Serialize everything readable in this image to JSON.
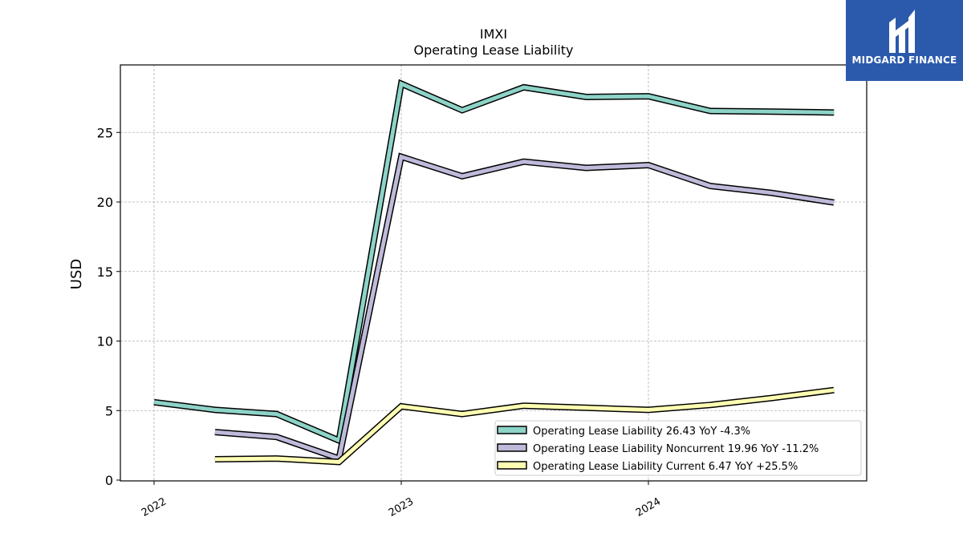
{
  "brand": {
    "name": "MIDGARD FINANCE",
    "logo_icon": "midgard-logo-icon",
    "background_color": "#2b5aac"
  },
  "chart_data": {
    "type": "line",
    "title": "IMXI",
    "subtitle": "Operating Lease Liability",
    "ylabel": "USD",
    "xlabel": "",
    "ylim": [
      0,
      30
    ],
    "y_ticks": [
      0,
      5,
      10,
      15,
      20,
      25
    ],
    "x_ticks": [
      "2022",
      "2023",
      "2024"
    ],
    "grid": true,
    "legend_position": "lower-right",
    "series": [
      {
        "name": "Operating Lease Liability",
        "legend_label": "Operating Lease Liability  26.43 YoY -4.3%",
        "color": "#8dd3c7",
        "points": [
          [
            "2022-01-01",
            5.6
          ],
          [
            "2022-04-01",
            5.05
          ],
          [
            "2022-07-01",
            4.75
          ],
          [
            "2022-10-01",
            2.85
          ],
          [
            "2023-01-01",
            28.5
          ],
          [
            "2023-04-01",
            26.6
          ],
          [
            "2023-07-01",
            28.25
          ],
          [
            "2023-10-01",
            27.55
          ],
          [
            "2024-01-01",
            27.6
          ],
          [
            "2024-04-01",
            26.55
          ],
          [
            "2024-07-01",
            26.5
          ],
          [
            "2024-10-01",
            26.43
          ]
        ]
      },
      {
        "name": "Operating Lease Liability Noncurrent",
        "legend_label": "Operating Lease Liability Noncurrent  19.96 YoY -11.2%",
        "color": "#bebada",
        "points": [
          [
            "2022-04-01",
            3.45
          ],
          [
            "2022-07-01",
            3.1
          ],
          [
            "2022-10-01",
            1.55
          ],
          [
            "2023-01-01",
            23.25
          ],
          [
            "2023-04-01",
            21.85
          ],
          [
            "2023-07-01",
            22.9
          ],
          [
            "2023-10-01",
            22.45
          ],
          [
            "2024-01-01",
            22.65
          ],
          [
            "2024-04-01",
            21.15
          ],
          [
            "2024-07-01",
            20.65
          ],
          [
            "2024-10-01",
            19.96
          ]
        ]
      },
      {
        "name": "Operating Lease Liability Current",
        "legend_label": "Operating Lease Liability Current  6.47 YoY +25.5%",
        "color": "#ffffb3",
        "points": [
          [
            "2022-04-01",
            1.5
          ],
          [
            "2022-07-01",
            1.55
          ],
          [
            "2022-10-01",
            1.3
          ],
          [
            "2023-01-01",
            5.3
          ],
          [
            "2023-04-01",
            4.75
          ],
          [
            "2023-07-01",
            5.35
          ],
          [
            "2023-10-01",
            5.2
          ],
          [
            "2024-01-01",
            5.05
          ],
          [
            "2024-04-01",
            5.4
          ],
          [
            "2024-07-01",
            5.9
          ],
          [
            "2024-10-01",
            6.47
          ]
        ]
      }
    ]
  }
}
